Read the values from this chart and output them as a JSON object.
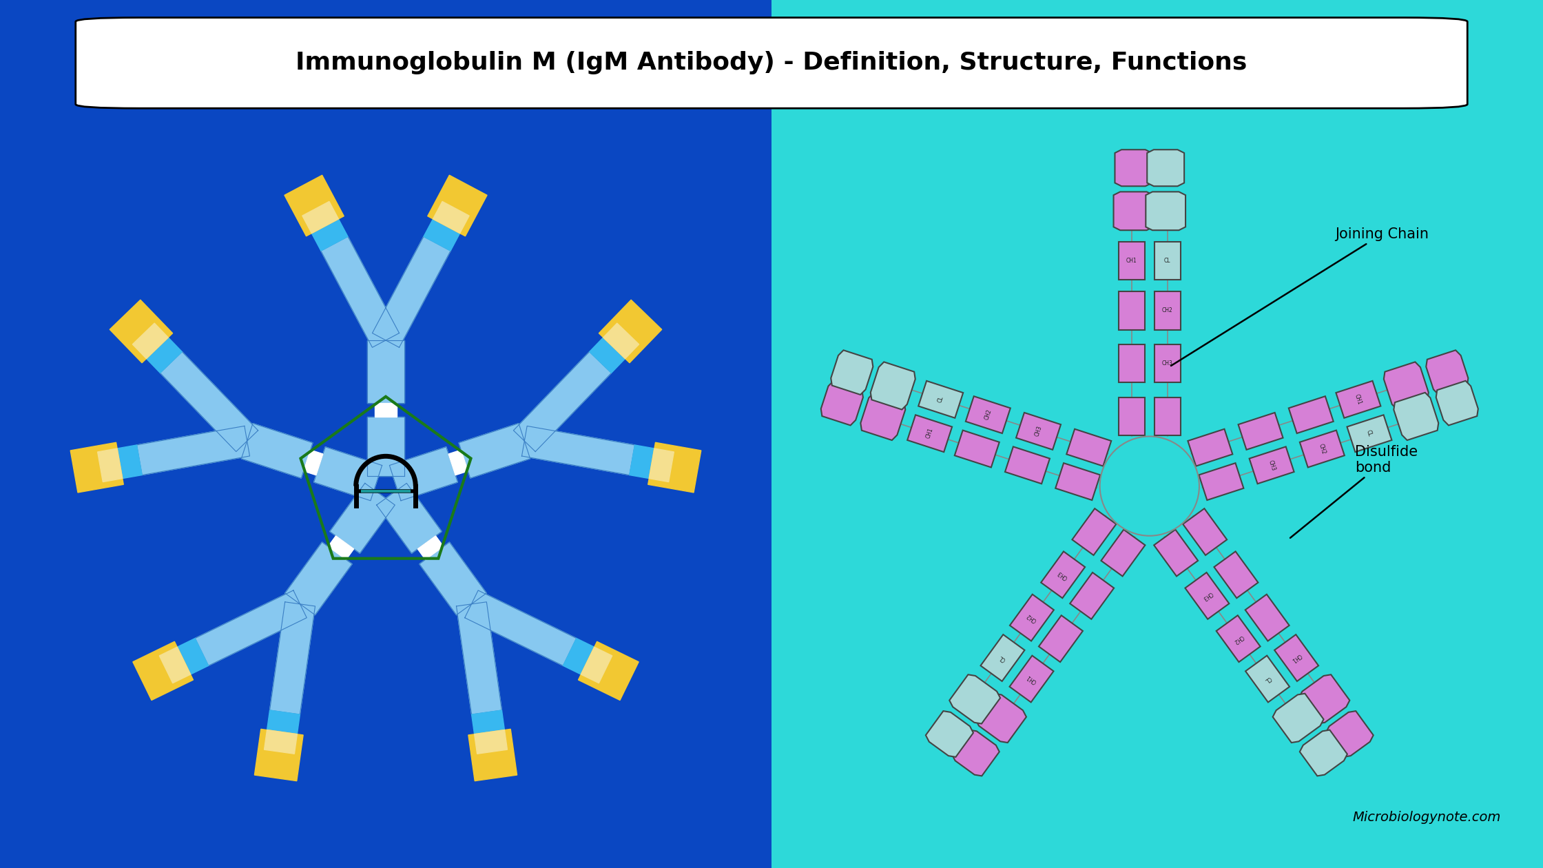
{
  "title": "Immunoglobulin M (IgM Antibody) - Definition, Structure, Functions",
  "title_fontsize": 26,
  "bg_left": "#0A47C2",
  "bg_right": "#2DD9D9",
  "light_blue": "#87C8F0",
  "cyan_blue": "#38B8F0",
  "dark_blue_line": "#3B7FC4",
  "yellow": "#F2C832",
  "yellow_light": "#F5E090",
  "green_pentagon": "#1A7A1A",
  "pink": "#D680D6",
  "gray_blue": "#A8D8D8",
  "annotation_color": "#111111",
  "watermark": "Microbiologynote.com",
  "joining_chain_label": "Joining Chain",
  "disulfide_label": "Disulfide\nbond"
}
